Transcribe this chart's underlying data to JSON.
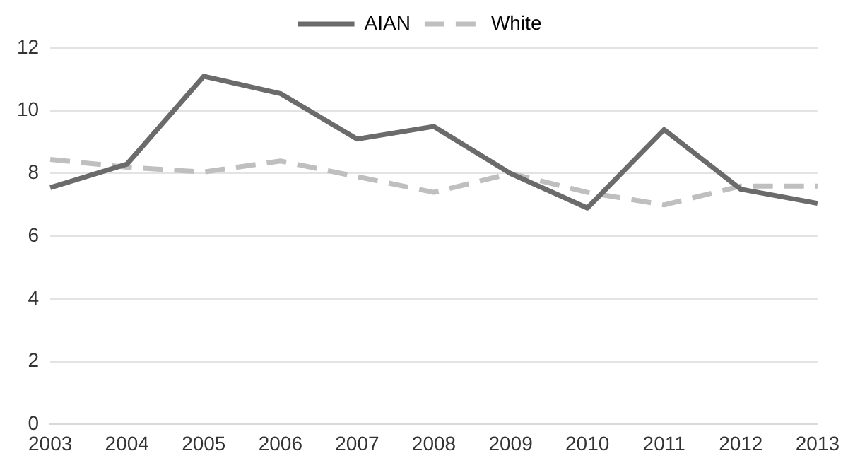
{
  "chart_data": {
    "type": "line",
    "categories": [
      "2003",
      "2004",
      "2005",
      "2006",
      "2007",
      "2008",
      "2009",
      "2010",
      "2011",
      "2012",
      "2013"
    ],
    "series": [
      {
        "name": "AIAN",
        "color": "#6b6b6b",
        "line_style": "solid",
        "values": [
          7.55,
          8.3,
          11.1,
          10.55,
          9.1,
          9.5,
          8.0,
          6.9,
          9.4,
          7.5,
          7.05
        ]
      },
      {
        "name": "White",
        "color": "#bfbfbf",
        "line_style": "dashed",
        "values": [
          8.45,
          8.2,
          8.05,
          8.4,
          7.9,
          7.4,
          8.0,
          7.4,
          7.0,
          7.6,
          7.6
        ]
      }
    ],
    "ylim": [
      0,
      12
    ],
    "yticks": [
      0,
      2,
      4,
      6,
      8,
      10,
      12
    ],
    "grid": "y",
    "legend": "top",
    "marker": "none"
  }
}
